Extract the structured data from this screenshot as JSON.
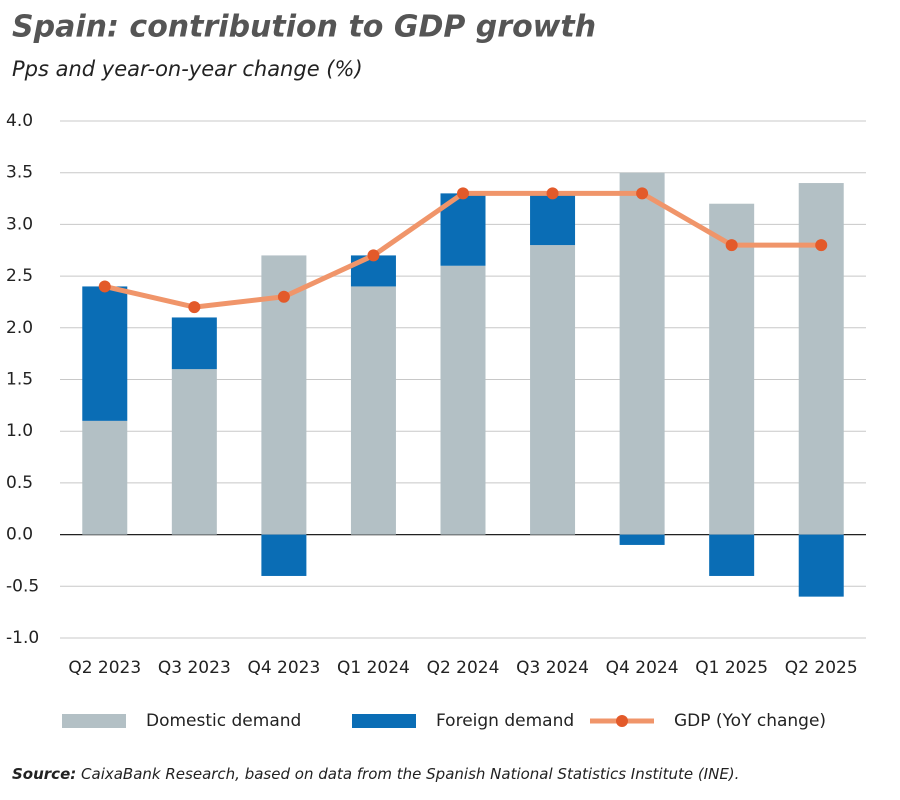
{
  "chart_data": {
    "type": "stacked-bar-line",
    "title": "Spain: contribution to GDP growth",
    "subtitle": "Pps and year-on-year change (%)",
    "categories": [
      "Q2 2023",
      "Q3 2023",
      "Q4 2023",
      "Q1 2024",
      "Q2 2024",
      "Q3 2024",
      "Q4 2024",
      "Q1 2025",
      "Q2 2025"
    ],
    "series": [
      {
        "name": "Domestic demand",
        "color": "#b3c0c5",
        "kind": "bar",
        "values": [
          1.1,
          1.6,
          2.7,
          2.4,
          2.6,
          2.8,
          3.5,
          3.2,
          3.4
        ]
      },
      {
        "name": "Foreign demand",
        "color": "#0a6db5",
        "kind": "bar",
        "values": [
          1.3,
          0.5,
          -0.4,
          0.3,
          0.7,
          0.5,
          -0.1,
          -0.4,
          -0.6
        ]
      },
      {
        "name": "GDP (YoY change)",
        "color": "#f0956a",
        "marker_color": "#e35a2a",
        "kind": "line",
        "values": [
          2.4,
          2.2,
          2.3,
          2.7,
          3.3,
          3.3,
          3.3,
          2.8,
          2.8
        ]
      }
    ],
    "ylim": [
      -1,
      4
    ],
    "yticks": [
      {
        "value": -1,
        "label": "-1.0"
      },
      -0.5,
      {
        "value": 0,
        "label": "0.0"
      },
      0.5,
      {
        "value": 1,
        "label": "1.0"
      },
      1.5,
      {
        "value": 2,
        "label": "2.0"
      },
      2.5,
      {
        "value": 3,
        "label": "3.0"
      },
      3.5,
      {
        "value": 4,
        "label": "4.0"
      }
    ],
    "grid": true,
    "legend": "bottom",
    "source_label": "Source:",
    "source_text": "CaixaBank Research, based on data from the Spanish National Statistics Institute (INE)."
  }
}
